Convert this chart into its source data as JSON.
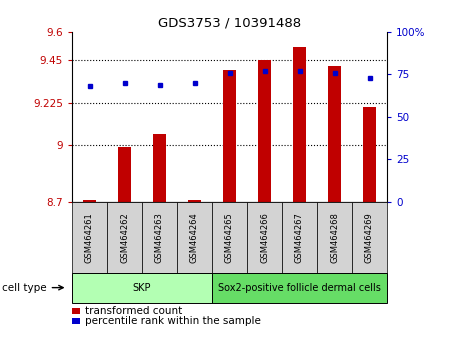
{
  "title": "GDS3753 / 10391488",
  "samples": [
    "GSM464261",
    "GSM464262",
    "GSM464263",
    "GSM464264",
    "GSM464265",
    "GSM464266",
    "GSM464267",
    "GSM464268",
    "GSM464269"
  ],
  "bar_values": [
    8.71,
    8.99,
    9.06,
    8.71,
    9.4,
    9.45,
    9.52,
    9.42,
    9.2
  ],
  "dot_values": [
    68,
    70,
    69,
    70,
    76,
    77,
    77,
    76,
    73
  ],
  "ylim_left": [
    8.7,
    9.6
  ],
  "ylim_right": [
    0,
    100
  ],
  "yticks_left": [
    8.7,
    9.0,
    9.225,
    9.45,
    9.6
  ],
  "ytick_labels_left": [
    "8.7",
    "9",
    "9.225",
    "9.45",
    "9.6"
  ],
  "yticks_right": [
    0,
    25,
    50,
    75,
    100
  ],
  "ytick_labels_right": [
    "0",
    "25",
    "50",
    "75",
    "100%"
  ],
  "grid_yticks": [
    9.0,
    9.225,
    9.45
  ],
  "bar_color": "#c00000",
  "dot_color": "#0000cc",
  "cell_groups": [
    {
      "label": "SKP",
      "start": 0,
      "end": 3,
      "color": "#b3ffb3"
    },
    {
      "label": "Sox2-positive follicle dermal cells",
      "start": 4,
      "end": 8,
      "color": "#66dd66"
    }
  ],
  "cell_type_label": "cell type",
  "legend_bar_label": "transformed count",
  "legend_dot_label": "percentile rank within the sample",
  "bar_width": 0.35,
  "figsize": [
    4.5,
    3.54
  ],
  "dpi": 100
}
